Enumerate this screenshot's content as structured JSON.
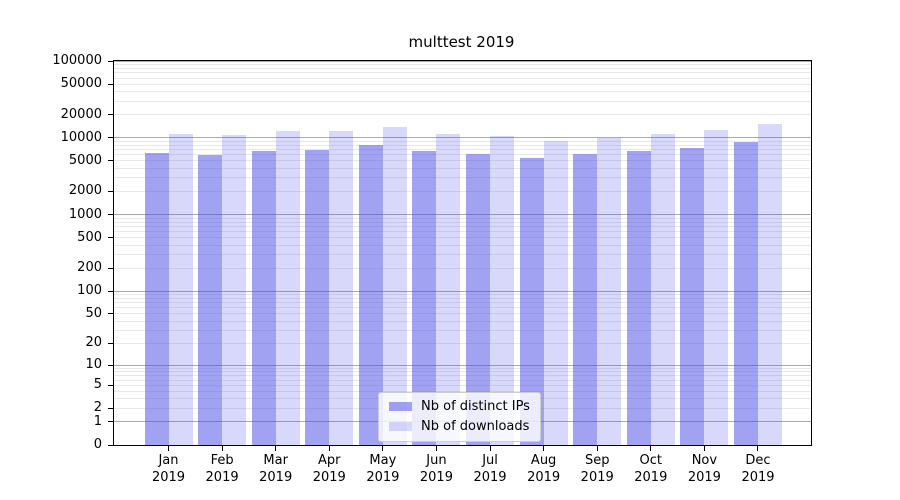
{
  "chart_data": {
    "type": "bar",
    "title": "multtest 2019",
    "categories": [
      "Jan 2019",
      "Feb 2019",
      "Mar 2019",
      "Apr 2019",
      "May 2019",
      "Jun 2019",
      "Jul 2019",
      "Aug 2019",
      "Sep 2019",
      "Oct 2019",
      "Nov 2019",
      "Dec 2019"
    ],
    "series": [
      {
        "name": "Nb of distinct IPs",
        "color": "rgba(70,70,230,0.50)",
        "values": [
          6300,
          6000,
          6700,
          7000,
          8000,
          6700,
          6200,
          5500,
          6100,
          6700,
          7400,
          8900
        ]
      },
      {
        "name": "Nb of downloads",
        "color": "rgba(70,70,230,0.21)",
        "values": [
          11300,
          11000,
          12300,
          12400,
          14000,
          11100,
          10400,
          9200,
          9900,
          11200,
          12500,
          15300
        ]
      }
    ],
    "xlabel": "",
    "ylabel": "",
    "y_scale": "log10(value+1)",
    "y_max": 100000,
    "y_ticks": [
      0,
      1,
      2,
      5,
      10,
      20,
      50,
      100,
      200,
      500,
      1000,
      2000,
      5000,
      10000,
      20000,
      50000,
      100000
    ],
    "grid": {
      "major_values": [
        1,
        10,
        100,
        1000,
        10000,
        100000
      ],
      "major_color": "#ababab",
      "minor_color": "#e8e8e8"
    },
    "legend_position": "lower center",
    "background_color": "#ffffff",
    "axis_color": "#000000"
  }
}
